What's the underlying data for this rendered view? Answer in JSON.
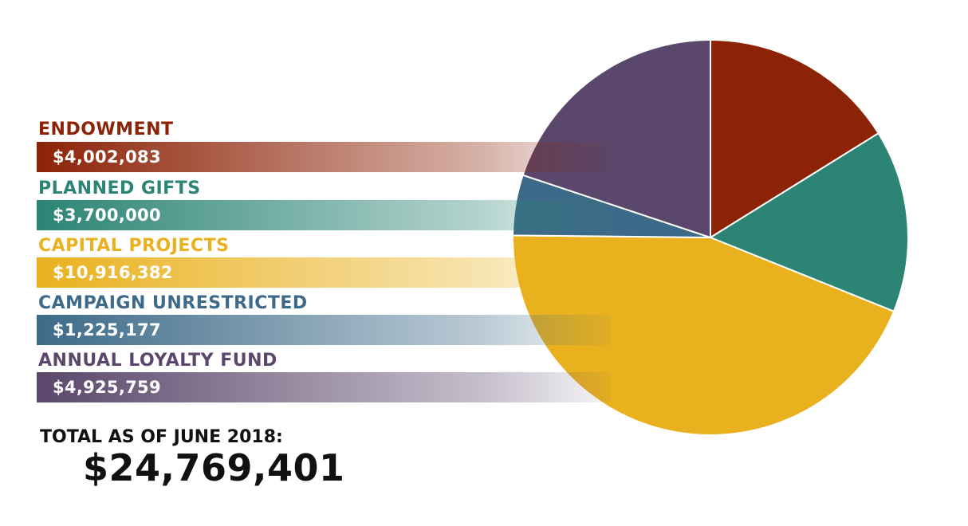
{
  "chart_data": {
    "type": "pie",
    "slices": [
      {
        "label": "ENDOWMENT",
        "value_text": "$4,002,083",
        "value": 4002083,
        "color": "#8c2307"
      },
      {
        "label": "PLANNED GIFTS",
        "value_text": "$3,700,000",
        "value": 3700000,
        "color": "#2b8474"
      },
      {
        "label": "CAPITAL PROJECTS",
        "value_text": "$10,916,382",
        "value": 10916382,
        "color": "#e9b11e"
      },
      {
        "label": "CAMPAIGN UNRESTRICTED",
        "value_text": "$1,225,177",
        "value": 1225177,
        "color": "#3d6a88"
      },
      {
        "label": "ANNUAL LOYALTY FUND",
        "value_text": "$4,925,759",
        "value": 4925759,
        "color": "#5a476b"
      }
    ],
    "total_label": "TOTAL AS OF JUNE 2018:",
    "total_value": "$24,769,401",
    "legend_placement": "left"
  }
}
